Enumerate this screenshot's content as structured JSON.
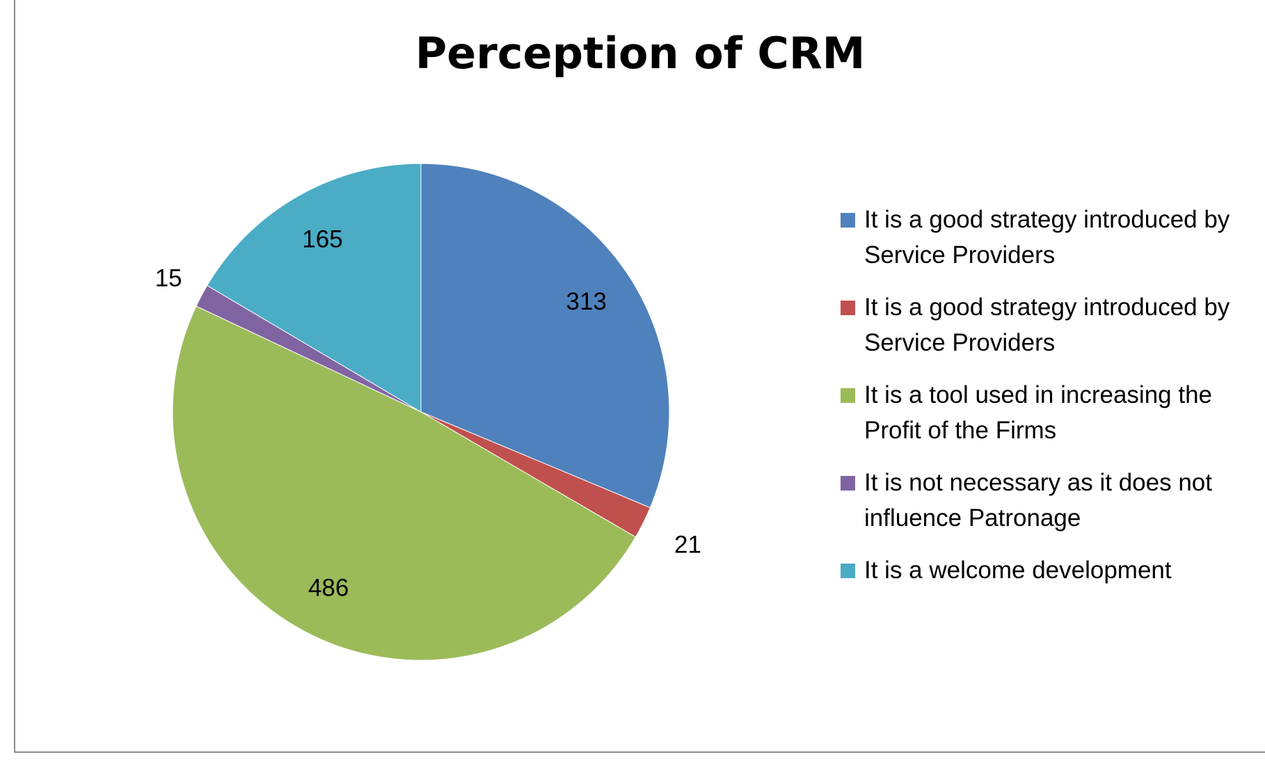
{
  "chart_data": {
    "type": "pie",
    "title": "Perception of CRM",
    "legend_position": "right",
    "slices": [
      {
        "label": "It is a good strategy introduced by Service Providers",
        "value": 313,
        "color": "#4F81BD"
      },
      {
        "label": "It is a good strategy introduced by Service Providers",
        "value": 21,
        "color": "#C0504D"
      },
      {
        "label": "It is a tool used in increasing the Profit of the Firms",
        "value": 486,
        "color": "#9BBB59"
      },
      {
        "label": "It is not necessary as it does not influence Patronage",
        "value": 15,
        "color": "#8064A2"
      },
      {
        "label": "It is a welcome development",
        "value": 165,
        "color": "#4BACC6"
      }
    ],
    "data_labels": [
      "313",
      "21",
      "486",
      "15",
      "165"
    ]
  }
}
